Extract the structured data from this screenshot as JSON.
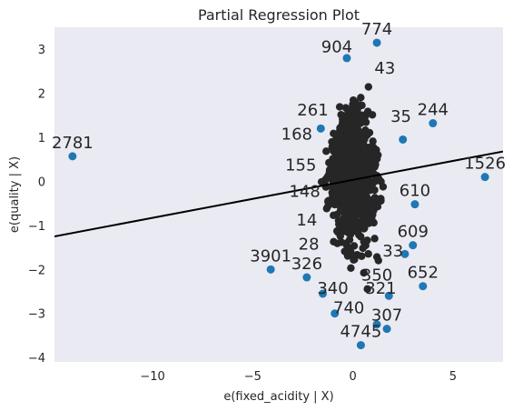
{
  "chart_data": {
    "type": "scatter",
    "title": "Partial Regression Plot",
    "xlabel": "e(fixed_acidity | X)",
    "ylabel": "e(quality | X)",
    "xlim": [
      -14.9,
      7.5
    ],
    "ylim": [
      -4.1,
      3.5
    ],
    "xticks": [
      -10,
      -5,
      0,
      5
    ],
    "yticks": [
      -4,
      -3,
      -2,
      -1,
      0,
      1,
      2,
      3
    ],
    "grid": false,
    "background": "#eaeaf2",
    "point_color": "#1f77b4",
    "line_color": "#000000",
    "fit_line": {
      "x": [
        -14.9,
        7.5
      ],
      "y": [
        -1.25,
        0.68
      ]
    },
    "labeled_points": [
      {
        "label": "774",
        "x": 1.2,
        "y": 3.15
      },
      {
        "label": "904",
        "x": -0.8,
        "y": 2.75
      },
      {
        "label": "2781",
        "x": -14.0,
        "y": 0.57
      },
      {
        "label": "1526",
        "x": 6.6,
        "y": 0.1
      },
      {
        "label": "244",
        "x": 4.0,
        "y": 1.32
      },
      {
        "label": "3901",
        "x": -4.1,
        "y": -2.0
      },
      {
        "label": "652",
        "x": 3.5,
        "y": -2.38
      },
      {
        "label": "4745",
        "x": 0.4,
        "y": -3.72
      },
      {
        "label": "307",
        "x": 1.7,
        "y": -3.35
      },
      {
        "label": "609",
        "x": 3.0,
        "y": -1.45
      },
      {
        "label": "610",
        "x": 3.1,
        "y": -0.52
      },
      {
        "label": "326",
        "x": -2.3,
        "y": -2.18
      },
      {
        "label": "2781",
        "x": -14.0,
        "y": 0.57
      }
    ],
    "cluster_labels": [
      {
        "label": "261",
        "x": -2.0,
        "y": 1.5
      },
      {
        "label": "155",
        "x": -2.6,
        "y": 0.25
      },
      {
        "label": "168",
        "x": -2.8,
        "y": 0.95
      },
      {
        "label": "148",
        "x": -2.4,
        "y": -0.35
      },
      {
        "label": "14",
        "x": -2.3,
        "y": -1.0
      },
      {
        "label": "28",
        "x": -2.2,
        "y": -1.55
      },
      {
        "label": "35",
        "x": 2.4,
        "y": 1.35
      },
      {
        "label": "43",
        "x": 1.6,
        "y": 2.45
      },
      {
        "label": "350",
        "x": 1.2,
        "y": -2.25
      },
      {
        "label": "321",
        "x": 1.4,
        "y": -2.55
      },
      {
        "label": "340",
        "x": -1.0,
        "y": -2.55
      },
      {
        "label": "740",
        "x": -0.2,
        "y": -3.0
      },
      {
        "label": "33",
        "x": 2.0,
        "y": -1.7
      }
    ],
    "outliers": [
      {
        "x": -14.0,
        "y": 0.57
      },
      {
        "x": 6.6,
        "y": 0.1
      },
      {
        "x": 4.0,
        "y": 1.32
      },
      {
        "x": -4.1,
        "y": -2.0
      },
      {
        "x": -2.3,
        "y": -2.18
      },
      {
        "x": 3.5,
        "y": -2.38
      },
      {
        "x": 3.1,
        "y": -0.52
      },
      {
        "x": 3.0,
        "y": -1.45
      },
      {
        "x": 2.6,
        "y": -1.65
      },
      {
        "x": 1.2,
        "y": 3.15
      },
      {
        "x": 0.4,
        "y": -3.72
      },
      {
        "x": 1.7,
        "y": -3.35
      },
      {
        "x": 1.2,
        "y": -3.25
      },
      {
        "x": -0.9,
        "y": -3.0
      },
      {
        "x": 1.8,
        "y": -2.6
      },
      {
        "x": -1.5,
        "y": -2.55
      },
      {
        "x": 2.5,
        "y": 0.95
      },
      {
        "x": -1.6,
        "y": 1.2
      },
      {
        "x": -0.3,
        "y": 2.8
      }
    ]
  }
}
